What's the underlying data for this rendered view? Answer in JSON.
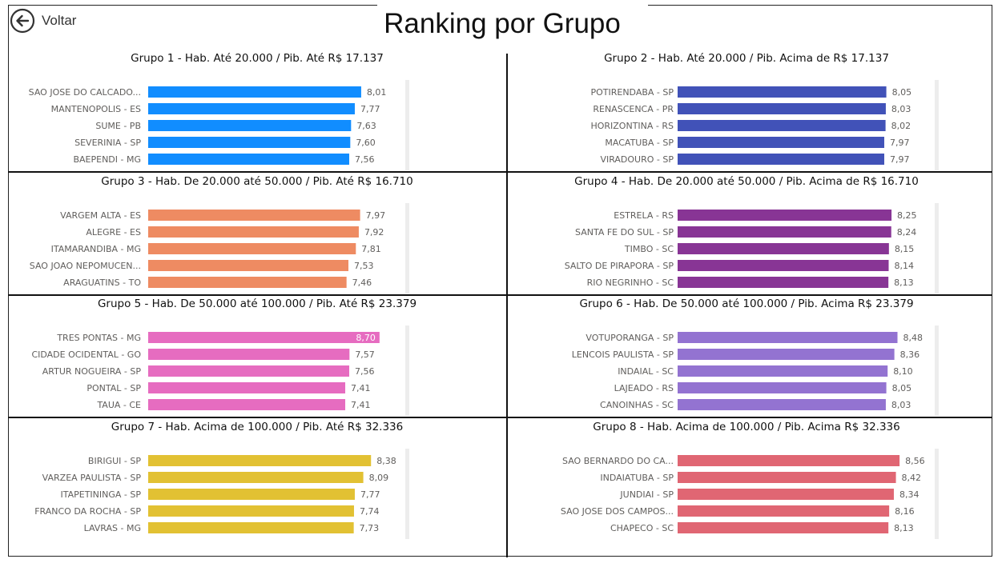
{
  "page": {
    "title": "Ranking por Grupo",
    "back_label": "Voltar"
  },
  "chart_data": [
    {
      "type": "bar",
      "orientation": "horizontal",
      "title": "Grupo 1 - Hab. Até 20.000 / Pib. Até R$ 17.137",
      "categories": [
        "SAO JOSE DO CALCADO...",
        "MANTENOPOLIS - ES",
        "SUME - PB",
        "SEVERINIA - SP",
        "BAEPENDI - MG"
      ],
      "values": [
        8.01,
        7.77,
        7.63,
        7.6,
        7.56
      ],
      "labels": [
        "8,01",
        "7,77",
        "7,63",
        "7,60",
        "7,56"
      ],
      "color": "#118DFF"
    },
    {
      "type": "bar",
      "orientation": "horizontal",
      "title": "Grupo 2 - Hab. Até 20.000 / Pib. Acima de R$ 17.137",
      "categories": [
        "POTIRENDABA - SP",
        "RENASCENCA - PR",
        "HORIZONTINA - RS",
        "MACATUBA - SP",
        "VIRADOURO - SP"
      ],
      "values": [
        8.05,
        8.03,
        8.02,
        7.97,
        7.97
      ],
      "labels": [
        "8,05",
        "8,03",
        "8,02",
        "7,97",
        "7,97"
      ],
      "color": "#4152B8"
    },
    {
      "type": "bar",
      "orientation": "horizontal",
      "title": "Grupo 3 - Hab. De 20.000 até 50.000 / Pib. Até R$ 16.710",
      "categories": [
        "VARGEM ALTA - ES",
        "ALEGRE - ES",
        "ITAMARANDIBA - MG",
        "SAO JOAO NEPOMUCEN...",
        "ARAGUATINS - TO"
      ],
      "values": [
        7.97,
        7.92,
        7.81,
        7.53,
        7.46
      ],
      "labels": [
        "7,97",
        "7,92",
        "7,81",
        "7,53",
        "7,46"
      ],
      "color": "#EE8B62"
    },
    {
      "type": "bar",
      "orientation": "horizontal",
      "title": "Grupo 4 - Hab. De 20.000 até 50.000 / Pib. Acima de R$ 16.710",
      "categories": [
        "ESTRELA - RS",
        "SANTA FE DO SUL - SP",
        "TIMBO - SC",
        "SALTO DE PIRAPORA - SP",
        "RIO NEGRINHO - SC"
      ],
      "values": [
        8.25,
        8.24,
        8.15,
        8.14,
        8.13
      ],
      "labels": [
        "8,25",
        "8,24",
        "8,15",
        "8,14",
        "8,13"
      ],
      "color": "#883595"
    },
    {
      "type": "bar",
      "orientation": "horizontal",
      "title": "Grupo 5 - Hab. De 50.000 até 100.000 / Pib. Até R$ 23.379",
      "categories": [
        "TRES PONTAS - MG",
        "CIDADE OCIDENTAL - GO",
        "ARTUR NOGUEIRA - SP",
        "PONTAL - SP",
        "TAUA - CE"
      ],
      "values": [
        8.7,
        7.57,
        7.56,
        7.41,
        7.41
      ],
      "labels": [
        "8,70",
        "7,57",
        "7,56",
        "7,41",
        "7,41"
      ],
      "color": "#E66CC0"
    },
    {
      "type": "bar",
      "orientation": "horizontal",
      "title": "Grupo 6 - Hab. De 50.000 até 100.000 / Pib. Acima R$ 23.379",
      "categories": [
        "VOTUPORANGA - SP",
        "LENCOIS PAULISTA - SP",
        "INDAIAL - SC",
        "LAJEADO - RS",
        "CANOINHAS - SC"
      ],
      "values": [
        8.48,
        8.36,
        8.1,
        8.05,
        8.03
      ],
      "labels": [
        "8,48",
        "8,36",
        "8,10",
        "8,05",
        "8,03"
      ],
      "color": "#9373D1"
    },
    {
      "type": "bar",
      "orientation": "horizontal",
      "title": "Grupo 7 - Hab. Acima de 100.000 / Pib. Até R$ 32.336",
      "categories": [
        "BIRIGUI - SP",
        "VARZEA PAULISTA - SP",
        "ITAPETININGA - SP",
        "FRANCO DA ROCHA - SP",
        "LAVRAS - MG"
      ],
      "values": [
        8.38,
        8.09,
        7.77,
        7.74,
        7.73
      ],
      "labels": [
        "8,38",
        "8,09",
        "7,77",
        "7,74",
        "7,73"
      ],
      "color": "#E2C133"
    },
    {
      "type": "bar",
      "orientation": "horizontal",
      "title": "Grupo 8 - Hab. Acima de 100.000 / Pib. Acima R$ 32.336",
      "categories": [
        "SAO BERNARDO DO CA...",
        "INDAIATUBA - SP",
        "JUNDIAI - SP",
        "SAO JOSE DOS CAMPOS...",
        "CHAPECO - SC"
      ],
      "values": [
        8.56,
        8.42,
        8.34,
        8.16,
        8.13
      ],
      "labels": [
        "8,56",
        "8,42",
        "8,34",
        "8,16",
        "8,13"
      ],
      "color": "#E06673"
    }
  ]
}
